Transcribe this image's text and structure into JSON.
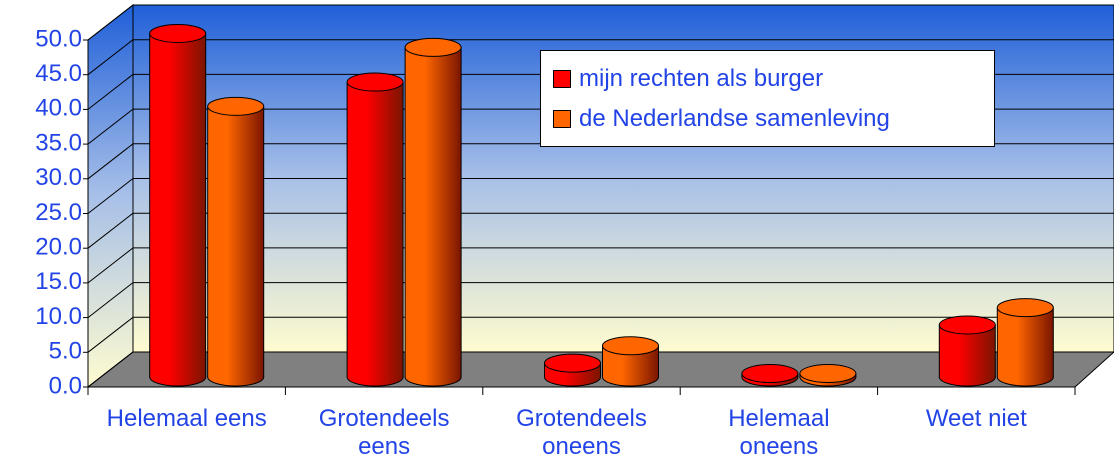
{
  "chart_data": {
    "type": "bar3d",
    "categories": [
      "Helemaal eens",
      "Grotendeels eens",
      "Grotendeels oneens",
      "Helemaal oneens",
      "Weet niet"
    ],
    "series": [
      {
        "name": "mijn rechten als burger",
        "color": "#ff0000",
        "values": [
          49.5,
          42.5,
          2,
          0.5,
          7.5
        ]
      },
      {
        "name": "de Nederlandse samenleving",
        "color": "#ff6600",
        "values": [
          39,
          47.5,
          4.5,
          0.5,
          10
        ]
      }
    ],
    "ylim": [
      0,
      50
    ],
    "yticks": [
      {
        "value": 0,
        "label": "0.0"
      },
      {
        "value": 5,
        "label": "5.0"
      },
      {
        "value": 10,
        "label": "10.0"
      },
      {
        "value": 15,
        "label": "15.0"
      },
      {
        "value": 20,
        "label": "20.0"
      },
      {
        "value": 25,
        "label": "25.0"
      },
      {
        "value": 30,
        "label": "30.0"
      },
      {
        "value": 35,
        "label": "35.0"
      },
      {
        "value": 40,
        "label": "40.0"
      },
      {
        "value": 45,
        "label": "45.0"
      },
      {
        "value": 50,
        "label": "50.0"
      }
    ],
    "grid": true
  }
}
